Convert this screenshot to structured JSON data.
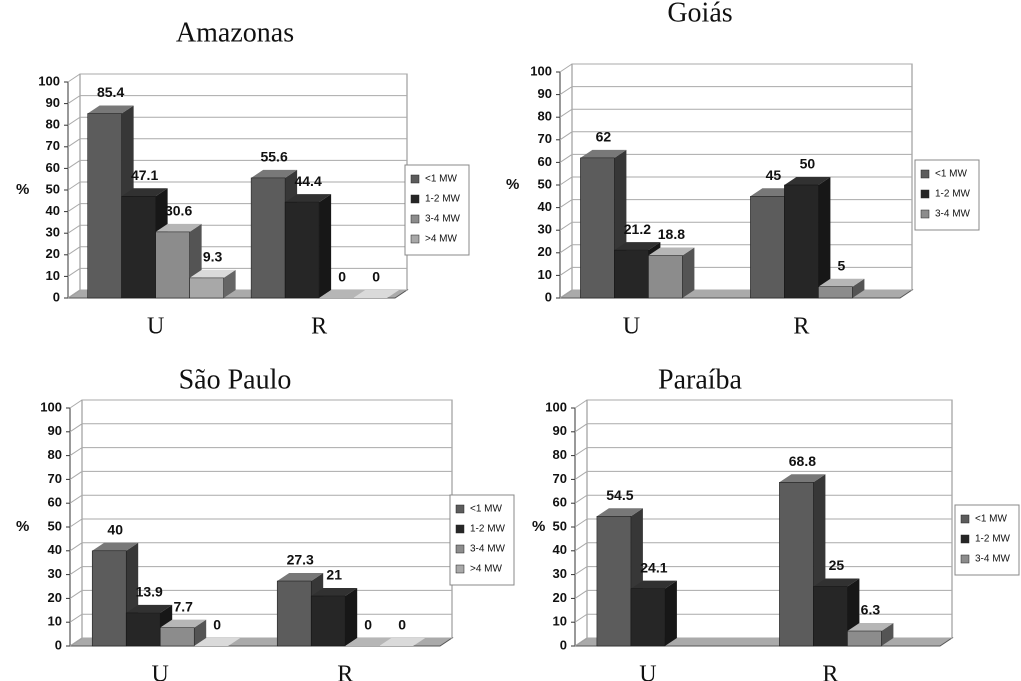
{
  "chart_data": [
    {
      "type": "bar",
      "title": "Amazonas",
      "ylabel": "%",
      "categories": [
        "U",
        "R"
      ],
      "series": [
        {
          "name": "<1 MW",
          "color": "#5c5c5c",
          "values": [
            85.4,
            55.6
          ]
        },
        {
          "name": "1-2 MW",
          "color": "#262626",
          "values": [
            47.1,
            44.4
          ]
        },
        {
          "name": "3-4 MW",
          "color": "#8c8c8c",
          "values": [
            30.6,
            0
          ]
        },
        {
          "name": ">4 MW",
          "color": "#a8a8a8",
          "values": [
            9.3,
            0
          ]
        }
      ],
      "ylim": [
        0,
        100
      ],
      "yticks": [
        0,
        10,
        20,
        30,
        40,
        50,
        60,
        70,
        80,
        90,
        100
      ],
      "grid": true,
      "legend": "right"
    },
    {
      "type": "bar",
      "title": "Goiás",
      "ylabel": "%",
      "categories": [
        "U",
        "R"
      ],
      "series": [
        {
          "name": "<1 MW",
          "color": "#5c5c5c",
          "values": [
            62,
            45
          ]
        },
        {
          "name": "1-2 MW",
          "color": "#262626",
          "values": [
            21.2,
            50
          ]
        },
        {
          "name": "3-4 MW",
          "color": "#8c8c8c",
          "values": [
            18.8,
            5
          ]
        }
      ],
      "ylim": [
        0,
        100
      ],
      "yticks": [
        0,
        10,
        20,
        30,
        40,
        50,
        60,
        70,
        80,
        90,
        100
      ],
      "grid": true,
      "legend": "right"
    },
    {
      "type": "bar",
      "title": "São Paulo",
      "ylabel": "%",
      "categories": [
        "U",
        "R"
      ],
      "series": [
        {
          "name": "<1 MW",
          "color": "#5c5c5c",
          "values": [
            40,
            27.3
          ]
        },
        {
          "name": "1-2 MW",
          "color": "#262626",
          "values": [
            13.9,
            21
          ]
        },
        {
          "name": "3-4 MW",
          "color": "#8c8c8c",
          "values": [
            7.7,
            0
          ]
        },
        {
          "name": ">4 MW",
          "color": "#a8a8a8",
          "values": [
            0,
            0
          ]
        }
      ],
      "ylim": [
        0,
        100
      ],
      "yticks": [
        0,
        10,
        20,
        30,
        40,
        50,
        60,
        70,
        80,
        90,
        100
      ],
      "grid": true,
      "legend": "right"
    },
    {
      "type": "bar",
      "title": "Paraíba",
      "ylabel": "%",
      "categories": [
        "U",
        "R"
      ],
      "series": [
        {
          "name": "<1 MW",
          "color": "#5c5c5c",
          "values": [
            54.5,
            68.8
          ]
        },
        {
          "name": "1-2 MW",
          "color": "#262626",
          "values": [
            24.1,
            25
          ]
        },
        {
          "name": "3-4 MW",
          "color": "#8c8c8c",
          "values": [
            null,
            6.3
          ]
        }
      ],
      "ylim": [
        0,
        100
      ],
      "yticks": [
        0,
        10,
        20,
        30,
        40,
        50,
        60,
        70,
        80,
        90,
        100
      ],
      "grid": true,
      "legend": "right"
    }
  ]
}
